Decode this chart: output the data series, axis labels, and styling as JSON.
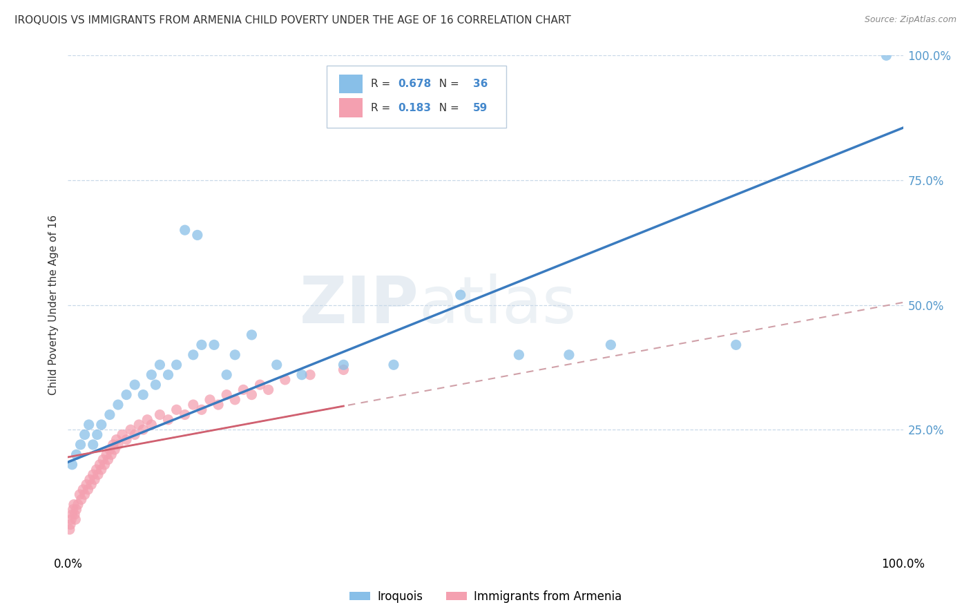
{
  "title": "IROQUOIS VS IMMIGRANTS FROM ARMENIA CHILD POVERTY UNDER THE AGE OF 16 CORRELATION CHART",
  "source": "Source: ZipAtlas.com",
  "ylabel": "Child Poverty Under the Age of 16",
  "xlim": [
    0.0,
    1.0
  ],
  "ylim": [
    0.0,
    1.0
  ],
  "ytick_positions": [
    0.25,
    0.5,
    0.75,
    1.0
  ],
  "ytick_labels": [
    "25.0%",
    "50.0%",
    "75.0%",
    "100.0%"
  ],
  "r_iroquois": "0.678",
  "n_iroquois": "36",
  "r_armenia": "0.183",
  "n_armenia": "59",
  "color_iroquois": "#88bfe8",
  "color_armenia": "#f4a0b0",
  "line_color_iroquois": "#3a7bbf",
  "line_color_armenia": "#d08090",
  "line_color_armenia_dash": "#ccaaaa",
  "watermark": "ZIPatlas",
  "background_color": "#ffffff",
  "grid_color": "#c8d8e8",
  "iroquois_x": [
    0.005,
    0.01,
    0.015,
    0.02,
    0.025,
    0.03,
    0.035,
    0.04,
    0.05,
    0.06,
    0.07,
    0.08,
    0.09,
    0.1,
    0.105,
    0.11,
    0.12,
    0.13,
    0.14,
    0.15,
    0.155,
    0.16,
    0.175,
    0.19,
    0.2,
    0.22,
    0.25,
    0.28,
    0.33,
    0.39,
    0.47,
    0.54,
    0.6,
    0.65,
    0.8,
    0.98
  ],
  "iroquois_y": [
    0.18,
    0.2,
    0.22,
    0.24,
    0.26,
    0.22,
    0.24,
    0.26,
    0.28,
    0.3,
    0.32,
    0.34,
    0.32,
    0.36,
    0.34,
    0.38,
    0.36,
    0.38,
    0.65,
    0.4,
    0.64,
    0.42,
    0.42,
    0.36,
    0.4,
    0.44,
    0.38,
    0.36,
    0.38,
    0.38,
    0.52,
    0.4,
    0.4,
    0.42,
    0.42,
    1.0
  ],
  "armenia_x": [
    0.002,
    0.003,
    0.004,
    0.005,
    0.006,
    0.007,
    0.008,
    0.009,
    0.01,
    0.012,
    0.014,
    0.016,
    0.018,
    0.02,
    0.022,
    0.024,
    0.026,
    0.028,
    0.03,
    0.032,
    0.034,
    0.036,
    0.038,
    0.04,
    0.042,
    0.044,
    0.046,
    0.048,
    0.05,
    0.052,
    0.054,
    0.056,
    0.058,
    0.06,
    0.065,
    0.07,
    0.075,
    0.08,
    0.085,
    0.09,
    0.095,
    0.1,
    0.11,
    0.12,
    0.13,
    0.14,
    0.15,
    0.16,
    0.17,
    0.18,
    0.19,
    0.2,
    0.21,
    0.22,
    0.23,
    0.24,
    0.26,
    0.29,
    0.33
  ],
  "armenia_y": [
    0.05,
    0.06,
    0.07,
    0.08,
    0.09,
    0.1,
    0.08,
    0.07,
    0.09,
    0.1,
    0.12,
    0.11,
    0.13,
    0.12,
    0.14,
    0.13,
    0.15,
    0.14,
    0.16,
    0.15,
    0.17,
    0.16,
    0.18,
    0.17,
    0.19,
    0.18,
    0.2,
    0.19,
    0.21,
    0.2,
    0.22,
    0.21,
    0.23,
    0.22,
    0.24,
    0.23,
    0.25,
    0.24,
    0.26,
    0.25,
    0.27,
    0.26,
    0.28,
    0.27,
    0.29,
    0.28,
    0.3,
    0.29,
    0.31,
    0.3,
    0.32,
    0.31,
    0.33,
    0.32,
    0.34,
    0.33,
    0.35,
    0.36,
    0.37
  ],
  "iroquois_line_x0": 0.0,
  "iroquois_line_y0": 0.185,
  "iroquois_line_x1": 1.0,
  "iroquois_line_y1": 0.855,
  "armenia_line_x0": 0.0,
  "armenia_line_y0": 0.195,
  "armenia_line_x1": 1.0,
  "armenia_line_y1": 0.505
}
